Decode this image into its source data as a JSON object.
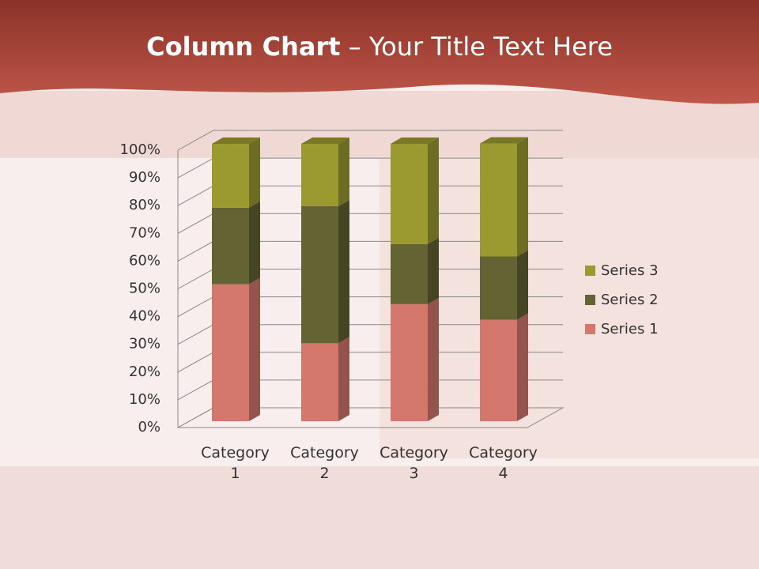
{
  "chart_data": {
    "type": "bar3d_stacked_percent",
    "title_bold": "Column Chart",
    "title_rest": "– Your Title Text Here",
    "categories": [
      "Category 1",
      "Category 2",
      "Category 3",
      "Category 4"
    ],
    "series": [
      {
        "name": "Series 1",
        "color": "#d4786e",
        "values": [
          49.4,
          28.1,
          42.2,
          36.6
        ]
      },
      {
        "name": "Series 2",
        "color": "#636333",
        "values": [
          27.6,
          49.4,
          21.7,
          22.8
        ]
      },
      {
        "name": "Series 3",
        "color": "#9a9a30",
        "values": [
          23,
          22.5,
          36.1,
          40.7
        ]
      }
    ],
    "ylim": [
      0,
      100
    ],
    "yticks": [
      {
        "value": 0,
        "label": "0%"
      },
      {
        "value": 10,
        "label": "10%"
      },
      {
        "value": 20,
        "label": "20%"
      },
      {
        "value": 30,
        "label": "30%"
      },
      {
        "value": 40,
        "label": "40%"
      },
      {
        "value": 50,
        "label": "50%"
      },
      {
        "value": 60,
        "label": "60%"
      },
      {
        "value": 70,
        "label": "70%"
      },
      {
        "value": 80,
        "label": "80%"
      },
      {
        "value": 90,
        "label": "90%"
      },
      {
        "value": 100,
        "label": "100%"
      }
    ],
    "grid": true,
    "legend": "right"
  }
}
